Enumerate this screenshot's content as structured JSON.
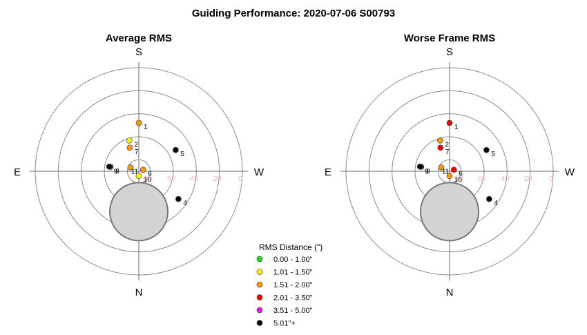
{
  "title": "Guiding Performance: 2020-07-06 S00793",
  "compass": {
    "north": "N",
    "south": "S",
    "east": "E",
    "west": "W"
  },
  "chart_data": [
    {
      "type": "scatter",
      "projection": "polar-altaz",
      "title": "Average RMS",
      "rings_alt": [
        0,
        20,
        40,
        60,
        80
      ],
      "alt_tick_labels": [
        "80",
        "60",
        "40",
        "20",
        "0"
      ],
      "points": [
        {
          "label": "1",
          "alt": 48,
          "az": 0,
          "category": "1.51 - 2.00\""
        },
        {
          "label": "2",
          "alt": 62,
          "az": 17,
          "category": "1.01 - 1.50\""
        },
        {
          "label": "7",
          "alt": 68,
          "az": 21,
          "category": "1.51 - 2.00\""
        },
        {
          "label": "5",
          "alt": 53,
          "az": 300,
          "category": "5.01\"+"
        },
        {
          "label": "9",
          "alt": 65,
          "az": 81,
          "category": "5.01\"+"
        },
        {
          "label": "8",
          "alt": 64,
          "az": 81,
          "category": "5.01\"+"
        },
        {
          "label": "11",
          "alt": 82,
          "az": 65,
          "category": "1.51 - 2.00\""
        },
        {
          "label": "6",
          "alt": 86,
          "az": 290,
          "category": "1.51 - 2.00\""
        },
        {
          "label": "10",
          "alt": 86,
          "az": 180,
          "category": "1.01 - 1.50\""
        },
        {
          "label": "4",
          "alt": 48,
          "az": 235,
          "category": "5.01\"+"
        }
      ],
      "moon": {
        "alt": 55,
        "az": 180
      }
    },
    {
      "type": "scatter",
      "projection": "polar-altaz",
      "title": "Worse Frame RMS",
      "rings_alt": [
        0,
        20,
        40,
        60,
        80
      ],
      "alt_tick_labels": [
        "80",
        "60",
        "40",
        "20",
        "0"
      ],
      "points": [
        {
          "label": "1",
          "alt": 48,
          "az": 0,
          "category": "2.01 - 3.50\""
        },
        {
          "label": "2",
          "alt": 62,
          "az": 17,
          "category": "1.51 - 2.00\""
        },
        {
          "label": "7",
          "alt": 68,
          "az": 21,
          "category": "2.01 - 3.50\""
        },
        {
          "label": "5",
          "alt": 53,
          "az": 300,
          "category": "5.01\"+"
        },
        {
          "label": "9",
          "alt": 65,
          "az": 81,
          "category": "5.01\"+"
        },
        {
          "label": "8",
          "alt": 64,
          "az": 81,
          "category": "5.01\"+"
        },
        {
          "label": "11",
          "alt": 82,
          "az": 65,
          "category": "1.51 - 2.00\""
        },
        {
          "label": "6",
          "alt": 86,
          "az": 290,
          "category": "2.01 - 3.50\""
        },
        {
          "label": "10",
          "alt": 86,
          "az": 180,
          "category": "1.51 - 2.00\""
        },
        {
          "label": "4",
          "alt": 48,
          "az": 235,
          "category": "5.01\"+"
        }
      ],
      "moon": {
        "alt": 55,
        "az": 180
      }
    }
  ],
  "legend": {
    "title": "RMS Distance (\")",
    "placement": "bottom-center",
    "items": [
      {
        "label": "0.00 - 1.00\"",
        "color": "#22dd22"
      },
      {
        "label": "1.01 - 1.50\"",
        "color": "#ffff00"
      },
      {
        "label": "1.51 - 2.00\"",
        "color": "#ff9900"
      },
      {
        "label": "2.01 - 3.50\"",
        "color": "#ee0000"
      },
      {
        "label": "3.51 - 5.00\"",
        "color": "#ff00ff"
      },
      {
        "label": "5.01\"+",
        "color": "#000000"
      }
    ]
  },
  "colors": {
    "ring": "#8a8a8a",
    "axis": "#666666",
    "moon_fill": "#d3d3d3",
    "moon_stroke": "#777777",
    "alt_label": "#f4b6c2"
  }
}
